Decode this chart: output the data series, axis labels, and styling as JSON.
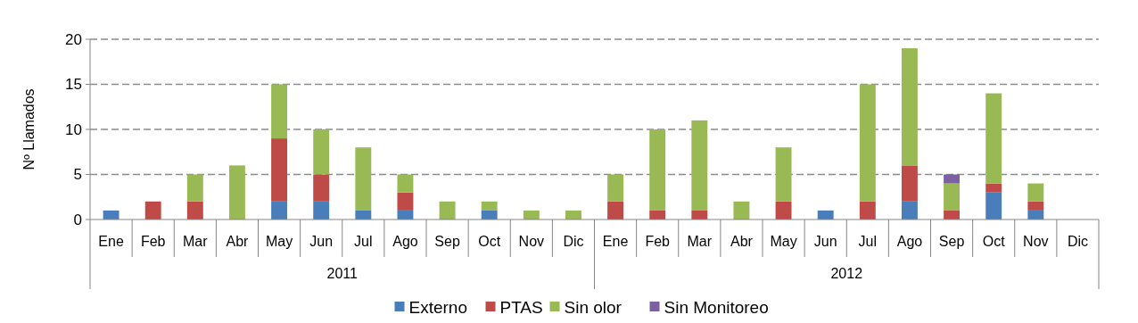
{
  "chart_data": {
    "type": "bar",
    "stacked": true,
    "ylabel": "Nº Llamados",
    "categories": [
      "Ene",
      "Feb",
      "Mar",
      "Abr",
      "May",
      "Jun",
      "Jul",
      "Ago",
      "Sep",
      "Oct",
      "Nov",
      "Dic",
      "Ene",
      "Feb",
      "Mar",
      "Abr",
      "May",
      "Jun",
      "Jul",
      "Ago",
      "Sep",
      "Oct",
      "Nov",
      "Dic"
    ],
    "annotations": [
      "2011",
      "2012"
    ],
    "series": [
      {
        "name": "Externo",
        "color": "#4a7ebb",
        "values": [
          1,
          0,
          0,
          0,
          2,
          2,
          1,
          1,
          0,
          1,
          0,
          0,
          0,
          0,
          0,
          0,
          0,
          1,
          0,
          2,
          0,
          3,
          1,
          0
        ]
      },
      {
        "name": "PTAS",
        "color": "#be4b48",
        "values": [
          0,
          2,
          2,
          0,
          7,
          3,
          0,
          2,
          0,
          0,
          0,
          0,
          2,
          1,
          1,
          0,
          2,
          0,
          2,
          4,
          1,
          1,
          1,
          0
        ]
      },
      {
        "name": "Sin olor",
        "color": "#98b954",
        "values": [
          0,
          0,
          3,
          6,
          6,
          5,
          7,
          2,
          2,
          1,
          1,
          1,
          3,
          9,
          10,
          2,
          6,
          0,
          13,
          13,
          3,
          10,
          2,
          0
        ]
      },
      {
        "name": "Sin Monitoreo",
        "color": "#7d60a0",
        "values": [
          0,
          0,
          0,
          0,
          0,
          0,
          0,
          0,
          0,
          0,
          0,
          0,
          0,
          0,
          0,
          0,
          0,
          0,
          0,
          0,
          1,
          0,
          0,
          0
        ]
      }
    ],
    "ylim": [
      0,
      20
    ],
    "yticks": [
      0,
      5,
      10,
      15,
      20
    ],
    "grid": "y",
    "line_style": "dashed",
    "legend": "bottom"
  }
}
